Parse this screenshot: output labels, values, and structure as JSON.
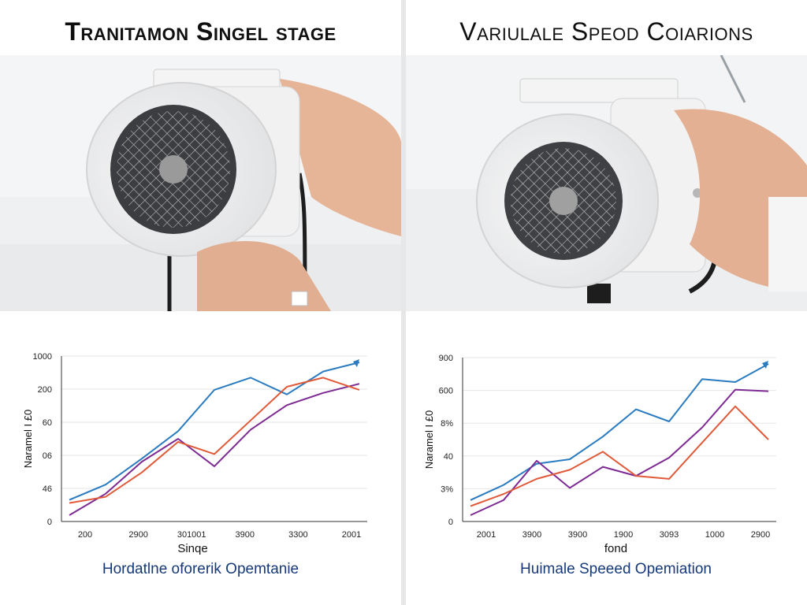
{
  "left": {
    "title": "Tranitamon Singel stage",
    "chart_data": {
      "type": "line",
      "xlabel": "Sinqe",
      "ylabel": "Naramel I £0",
      "x_ticks": [
        "200",
        "2900",
        "301001",
        "3900",
        "3300",
        "2001"
      ],
      "y_ticks": [
        "1000",
        "200",
        "60",
        "06",
        "46",
        "0"
      ],
      "series": [
        {
          "color": "#2a7bbf",
          "values": [
            10,
            20,
            37,
            55,
            82,
            90,
            79,
            94,
            100
          ]
        },
        {
          "color": "#7d2a93",
          "values": [
            0,
            14,
            35,
            50,
            32,
            56,
            72,
            80,
            86
          ]
        },
        {
          "color": "#e05a3a",
          "values": [
            8,
            12,
            28,
            48,
            40,
            62,
            84,
            90,
            82
          ]
        }
      ]
    },
    "xlabel": "Sinqe",
    "caption": "Hordatlne oforerik Opemtanie"
  },
  "right": {
    "title": "Variulale Speod Coiarions",
    "chart_data": {
      "type": "line",
      "xlabel": "fond",
      "ylabel": "Naramel I £0",
      "x_ticks": [
        "2001",
        "3900",
        "3900",
        "1900",
        "3093",
        "1000",
        "2900"
      ],
      "y_ticks": [
        "900",
        "600",
        "8%",
        "40",
        "3%",
        "0"
      ],
      "series": [
        {
          "color": "#2a7bbf",
          "values": [
            10,
            20,
            34,
            37,
            52,
            70,
            62,
            90,
            88,
            100
          ]
        },
        {
          "color": "#7d2a93",
          "values": [
            0,
            10,
            36,
            18,
            32,
            26,
            38,
            58,
            83,
            82
          ]
        },
        {
          "color": "#e05a3a",
          "values": [
            6,
            14,
            24,
            30,
            42,
            26,
            24,
            48,
            72,
            50
          ]
        }
      ]
    },
    "xlabel": "fond",
    "caption": "Huimale Speeed Opemiation"
  }
}
